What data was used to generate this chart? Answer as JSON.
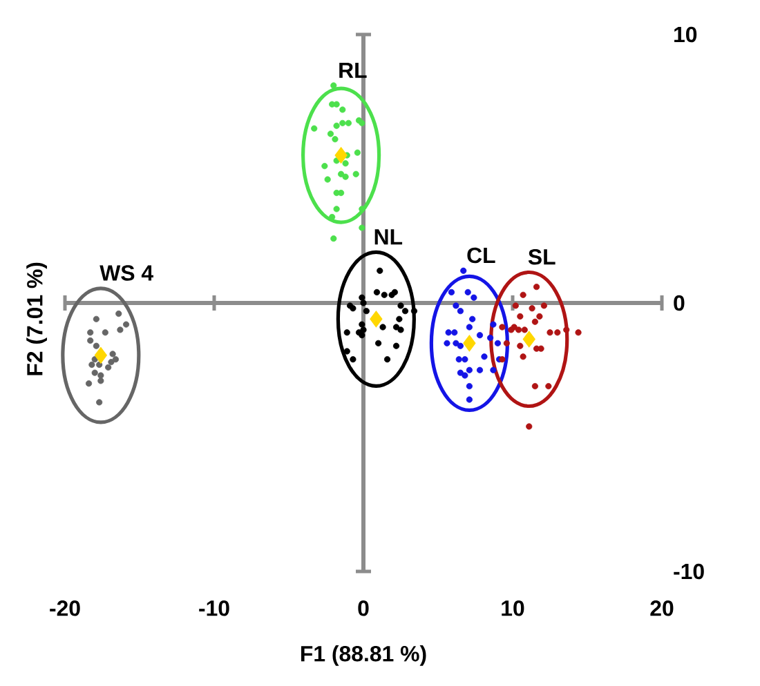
{
  "chart_data": {
    "type": "scatter",
    "xlabel": "F1 (88.81 %)",
    "ylabel": "F2 (7.01 %)",
    "xlim": [
      -20,
      20
    ],
    "ylim": [
      -10,
      10
    ],
    "xticks": [
      -20,
      -10,
      0,
      10,
      20
    ],
    "yticks": [
      -10,
      0,
      10
    ],
    "marker": "circle",
    "series": [
      {
        "name": "RL",
        "color": "#4ce04c",
        "x": [
          -2.0,
          -2.1,
          -1.8,
          -1.4,
          -3.3,
          -2.2,
          -1.9,
          -1.8,
          -1.4,
          -1.0,
          -0.3,
          -0.1,
          -0.4,
          -2.6,
          -2.4,
          -1.8,
          -1.5,
          -1.2,
          -1.2,
          -0.5,
          -1.8,
          -1.5,
          -1.8,
          -0.1,
          -2.1,
          -0.1,
          -2.0,
          -1.1
        ],
        "values": [
          8.1,
          7.4,
          7.4,
          7.2,
          6.5,
          6.3,
          6.1,
          6.6,
          6.7,
          6.7,
          6.8,
          6.7,
          5.6,
          5.1,
          4.6,
          5.3,
          4.8,
          4.7,
          5.2,
          4.8,
          4.1,
          4.1,
          3.5,
          3.5,
          3.2,
          2.8,
          2.4,
          5.5
        ]
      },
      {
        "name": "NL",
        "color": "#000000",
        "x": [
          1.1,
          0.9,
          1.4,
          1.9,
          2.1,
          -0.1,
          0.0,
          -0.9,
          -0.7,
          0.2,
          2.5,
          2.4,
          2.8,
          3.4,
          -0.1,
          -0.3,
          -1.1,
          0.0,
          2.2,
          2.5,
          1.0,
          2.2,
          -1.1,
          -0.7,
          1.6,
          1.3,
          -0.1
        ],
        "values": [
          1.2,
          0.4,
          0.3,
          0.3,
          0.4,
          0.2,
          0.0,
          -0.1,
          -0.2,
          -0.3,
          -0.1,
          -0.6,
          -0.3,
          -0.3,
          -0.8,
          -1.1,
          -1.1,
          -1.0,
          -0.9,
          -1.0,
          -1.5,
          -1.6,
          -1.8,
          -2.1,
          -2.1,
          -0.9,
          -1.2
        ]
      },
      {
        "name": "CL",
        "color": "#1414e6",
        "x": [
          6.7,
          5.9,
          7.0,
          7.4,
          6.2,
          6.5,
          7.3,
          8.7,
          5.7,
          6.1,
          7.1,
          7.8,
          6.2,
          6.5,
          5.6,
          6.4,
          6.8,
          7.1,
          8.1,
          7.8,
          8.5,
          9.0,
          9.1,
          8.7,
          6.8,
          7.1,
          7.1,
          6.5
        ],
        "values": [
          1.2,
          0.4,
          0.4,
          0.2,
          -0.1,
          -0.3,
          -0.6,
          -0.8,
          -1.1,
          -1.1,
          -0.9,
          -1.2,
          -1.5,
          -1.6,
          -1.5,
          -2.1,
          -2.1,
          -2.5,
          -2.0,
          -2.5,
          -1.3,
          -1.5,
          -2.1,
          -2.5,
          -2.7,
          -3.1,
          -3.6,
          -2.6
        ]
      },
      {
        "name": "SL",
        "color": "#b01414",
        "x": [
          11.6,
          10.7,
          10.2,
          11.3,
          12.1,
          10.5,
          11.5,
          11.8,
          9.3,
          10.1,
          10.4,
          10.8,
          12.5,
          13.0,
          13.6,
          14.4,
          11.6,
          9.6,
          10.5,
          11.9,
          9.3,
          10.7,
          11.5,
          12.4,
          11.1,
          9.9
        ],
        "values": [
          0.6,
          0.3,
          -0.1,
          -0.2,
          -0.1,
          -0.5,
          -0.7,
          -0.5,
          -0.9,
          -0.9,
          -1.0,
          -1.0,
          -1.1,
          -1.1,
          -1.0,
          -1.1,
          -1.7,
          -1.5,
          -1.6,
          -1.7,
          -2.1,
          -2.0,
          -3.1,
          -3.1,
          -4.6,
          -1.0
        ]
      },
      {
        "name": "WS 4",
        "color": "#666666",
        "x": [
          -17.9,
          -16.4,
          -15.9,
          -16.3,
          -18.3,
          -17.3,
          -18.3,
          -17.9,
          -17.6,
          -16.8,
          -16.6,
          -18.0,
          -18.2,
          -17.7,
          -17.1,
          -18.4,
          -17.6,
          -17.6,
          -17.7,
          -16.9,
          -18.0
        ],
        "values": [
          -0.6,
          -0.4,
          -0.8,
          -1.0,
          -1.1,
          -1.1,
          -1.4,
          -1.6,
          null,
          -1.9,
          -2.1,
          -2.1,
          -2.3,
          -2.3,
          -2.4,
          -3.0,
          -2.7,
          -2.9,
          -3.7,
          -2.2,
          -2.6
        ]
      },
      {
        "marker": "diamond",
        "color": "#ffd700",
        "x": [
          -1.5,
          0.85,
          7.1,
          11.1,
          -17.6
        ],
        "values": [
          5.5,
          -0.6,
          -1.5,
          -1.35,
          -1.95
        ]
      }
    ]
  }
}
